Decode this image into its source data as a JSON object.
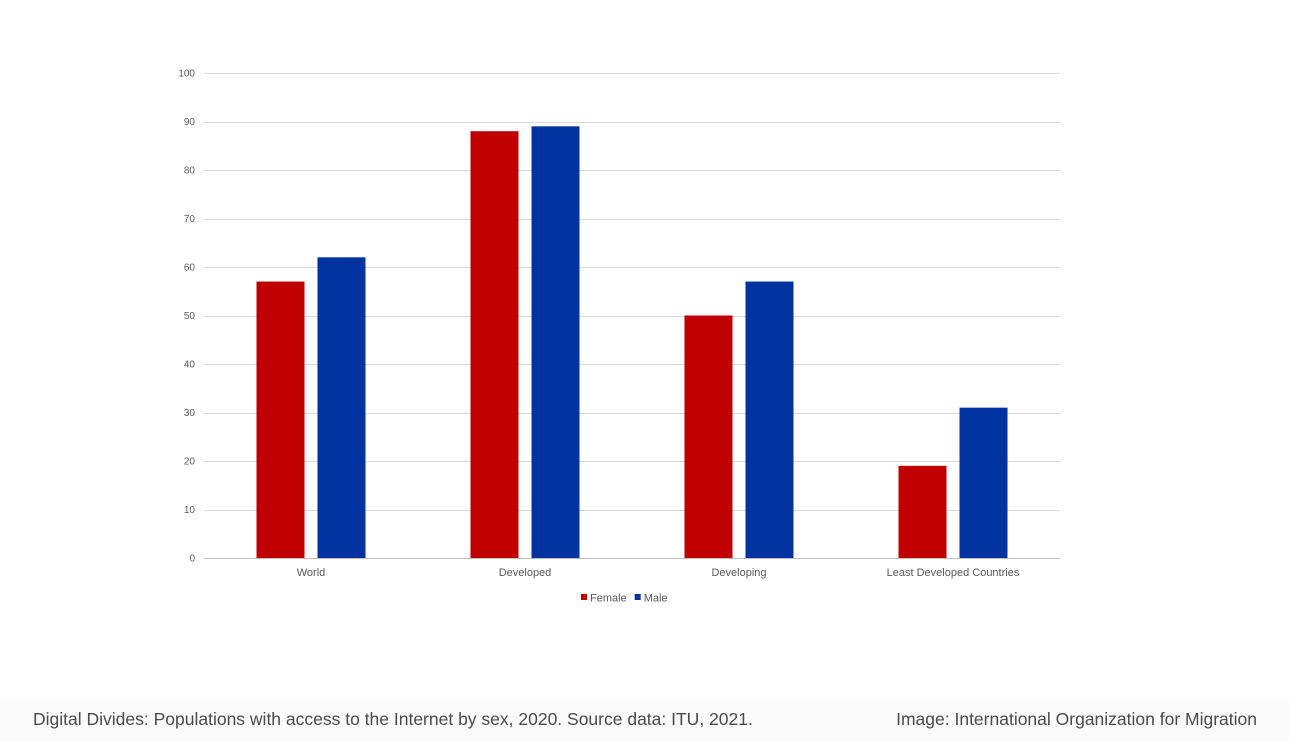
{
  "chart_data": {
    "type": "bar",
    "categories": [
      "World",
      "Developed",
      "Developing",
      "Least Developed Countries"
    ],
    "series": [
      {
        "name": "Female",
        "color": "#c00000",
        "values": [
          57,
          88,
          50,
          19
        ]
      },
      {
        "name": "Male",
        "color": "#0033a0",
        "values": [
          62,
          89,
          57,
          31
        ]
      }
    ],
    "ylim": [
      0,
      100
    ],
    "yticks": [
      0,
      10,
      20,
      30,
      40,
      50,
      60,
      70,
      80,
      90,
      100
    ],
    "grid": true,
    "legend_position": "bottom"
  },
  "caption": {
    "left": "Digital Divides: Populations with access to the Internet by sex, 2020. Source data: ITU, 2021.",
    "right": "Image: International Organization for Migration"
  }
}
